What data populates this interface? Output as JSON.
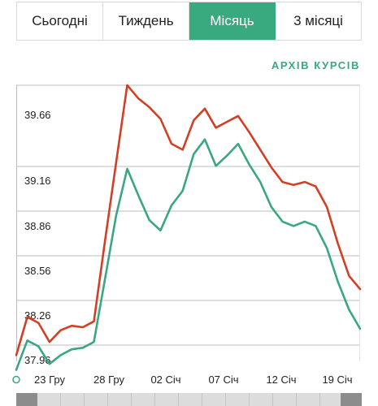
{
  "tabs": [
    {
      "label": "Сьогодні",
      "active": false
    },
    {
      "label": "Тиждень",
      "active": false
    },
    {
      "label": "Місяць",
      "active": true
    },
    {
      "label": "3 місяці",
      "active": false
    }
  ],
  "archive_link": "АРХІВ КУРСІВ",
  "colors": {
    "accent": "#39a97f",
    "sell": "#d23f24",
    "buy": "#3aa683"
  },
  "chart_data": {
    "type": "line",
    "title": "",
    "xlabel": "",
    "ylabel": "",
    "x_tick_labels": [
      "23 Гру",
      "28 Гру",
      "02 Січ",
      "07 Січ",
      "12 Січ",
      "19 Січ"
    ],
    "y_tick_labels": [
      "39.66",
      "39.16",
      "38.86",
      "38.56",
      "38.26",
      "37.96"
    ],
    "series": [
      {
        "color": "#d23f24",
        "values": [
          38.02,
          38.28,
          38.24,
          38.11,
          38.19,
          38.22,
          38.21,
          38.25,
          38.8,
          39.33,
          39.86,
          39.77,
          39.71,
          39.63,
          39.46,
          39.42,
          39.62,
          39.7,
          39.57,
          39.61,
          39.65,
          39.54,
          39.42,
          39.3,
          39.2,
          39.18,
          39.2,
          39.17,
          39.03,
          38.78,
          38.56,
          38.47
        ]
      },
      {
        "color": "#3aa683",
        "values": [
          37.92,
          38.12,
          38.08,
          37.96,
          38.02,
          38.06,
          38.07,
          38.11,
          38.54,
          38.97,
          39.29,
          39.11,
          38.94,
          38.87,
          39.04,
          39.14,
          39.39,
          39.49,
          39.31,
          39.38,
          39.46,
          39.32,
          39.2,
          39.03,
          38.93,
          38.9,
          38.93,
          38.9,
          38.75,
          38.52,
          38.33,
          38.2
        ]
      }
    ]
  }
}
